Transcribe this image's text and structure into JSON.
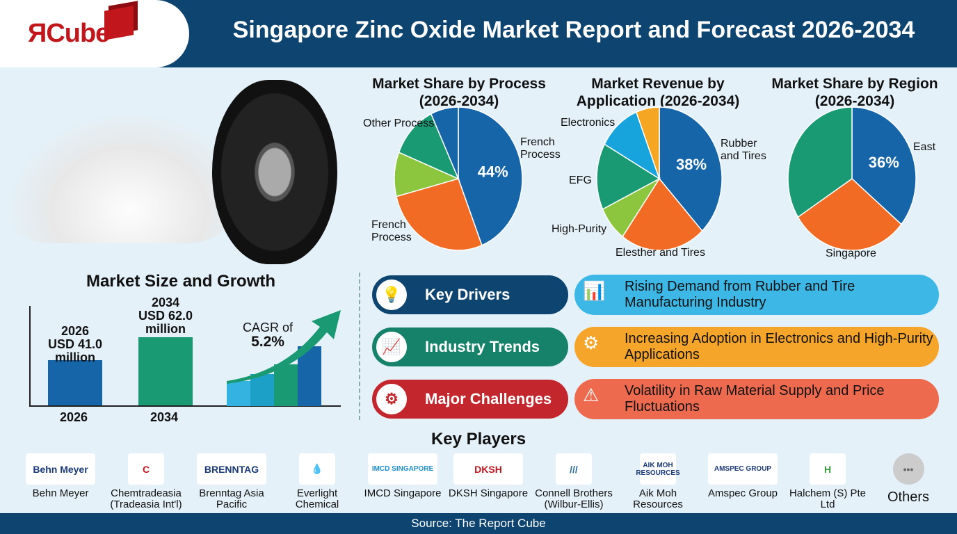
{
  "header": {
    "logo": "ЯCube",
    "title": "Singapore Zinc Oxide Market Report and Forecast 2026-2034"
  },
  "chart_data": [
    {
      "type": "pie",
      "title": "Market Share by Process (2026-2034)",
      "slices": [
        {
          "label": "French Process",
          "value": 44,
          "color": "#1565a8",
          "pct_label": "44%"
        },
        {
          "label": "French Process",
          "value": 27,
          "color": "#f26b24"
        },
        {
          "label": "",
          "value": 10,
          "color": "#8cc63f"
        },
        {
          "label": "Other Process",
          "value": 12,
          "color": "#1a9a73"
        },
        {
          "label": "",
          "value": 7,
          "color": "#1565a8"
        }
      ]
    },
    {
      "type": "pie",
      "title": "Market Revenue by Application (2026-2034)",
      "slices": [
        {
          "label": "Rubber and Tires",
          "value": 38,
          "color": "#1565a8",
          "pct_label": "38%"
        },
        {
          "label": "Elesther and Tires",
          "value": 22,
          "color": "#f26b24"
        },
        {
          "label": "High-Purity",
          "value": 8,
          "color": "#8cc63f"
        },
        {
          "label": "EFG",
          "value": 15,
          "color": "#1a9a73"
        },
        {
          "label": "Electronics",
          "value": 11,
          "color": "#17a4dd"
        },
        {
          "label": "",
          "value": 6,
          "color": "#f5a623"
        }
      ]
    },
    {
      "type": "pie",
      "title": "Market Share by Region (2026-2034)",
      "slices": [
        {
          "label": "East",
          "value": 36,
          "color": "#1565a8",
          "pct_label": "36%"
        },
        {
          "label": "Singapore",
          "value": 30,
          "color": "#f26b24"
        },
        {
          "label": "",
          "value": 34,
          "color": "#1a9a73"
        }
      ]
    },
    {
      "type": "bar",
      "title": "Market Size and Growth",
      "categories": [
        "2026",
        "2034"
      ],
      "values": [
        41.0,
        62.0
      ],
      "unit": "USD million",
      "data_labels": [
        "2026\nUSD 41.0\nmillion",
        "2034\nUSD 62.0\nmillion"
      ],
      "colors": [
        "#1565a8",
        "#1a9a73"
      ],
      "cagr_label": "CAGR of",
      "cagr": "5.2%"
    }
  ],
  "pie_titles": {
    "process": [
      "Market Share by Process",
      "(2026-2034)"
    ],
    "application": [
      "Market Revenue by",
      "Application (2026-2034)"
    ],
    "region": [
      "Market Share by Region",
      "(2026-2034)"
    ]
  },
  "growth": {
    "title": "Market Size and Growth",
    "bar1": [
      "2026",
      "USD 41.0",
      "million"
    ],
    "bar2": [
      "2034",
      "USD 62.0",
      "million"
    ],
    "x1": "2026",
    "x2": "2034",
    "cagr_label": "CAGR of",
    "cagr": "5.2%"
  },
  "factors": [
    {
      "label": "Key Drivers",
      "text": "Rising Demand from Rubber and Tire Manufacturing Industry",
      "icon": "lightbulb-icon"
    },
    {
      "label": "Industry Trends",
      "text": "Increasing Adoption in Electronics and High-Purity Applications",
      "icon": "chart-icon"
    },
    {
      "label": "Major Challenges",
      "text": "Volatility in Raw Material Supply and Price Fluctuations",
      "icon": "warning-icon"
    }
  ],
  "players": {
    "title": "Key Players",
    "items": [
      {
        "logo": "Behn Meyer",
        "name": "Behn Meyer"
      },
      {
        "logo": "C",
        "name": "Chemtradeasia (Tradeasia Int'l)"
      },
      {
        "logo": "BRENNTAG",
        "name": "Brenntag Asia Pacific"
      },
      {
        "logo": "💧",
        "name": "Everlight Chemical"
      },
      {
        "logo": "IMCD SINGAPORE",
        "name": "IMCD Singapore"
      },
      {
        "logo": "DKSH",
        "name": "DKSH Singapore"
      },
      {
        "logo": "///",
        "name": "Connell Brothers (Wilbur-Ellis)"
      },
      {
        "logo": "AIK MOH RESOURCES",
        "name": "Aik Moh Resources"
      },
      {
        "logo": "AMSPEC GROUP",
        "name": "Amspec Group"
      },
      {
        "logo": "H",
        "name": "Halchem (S) Pte Ltd"
      },
      {
        "logo": "•••",
        "name": "Others"
      }
    ]
  },
  "footer": {
    "source": "Source: The Report Cube"
  }
}
